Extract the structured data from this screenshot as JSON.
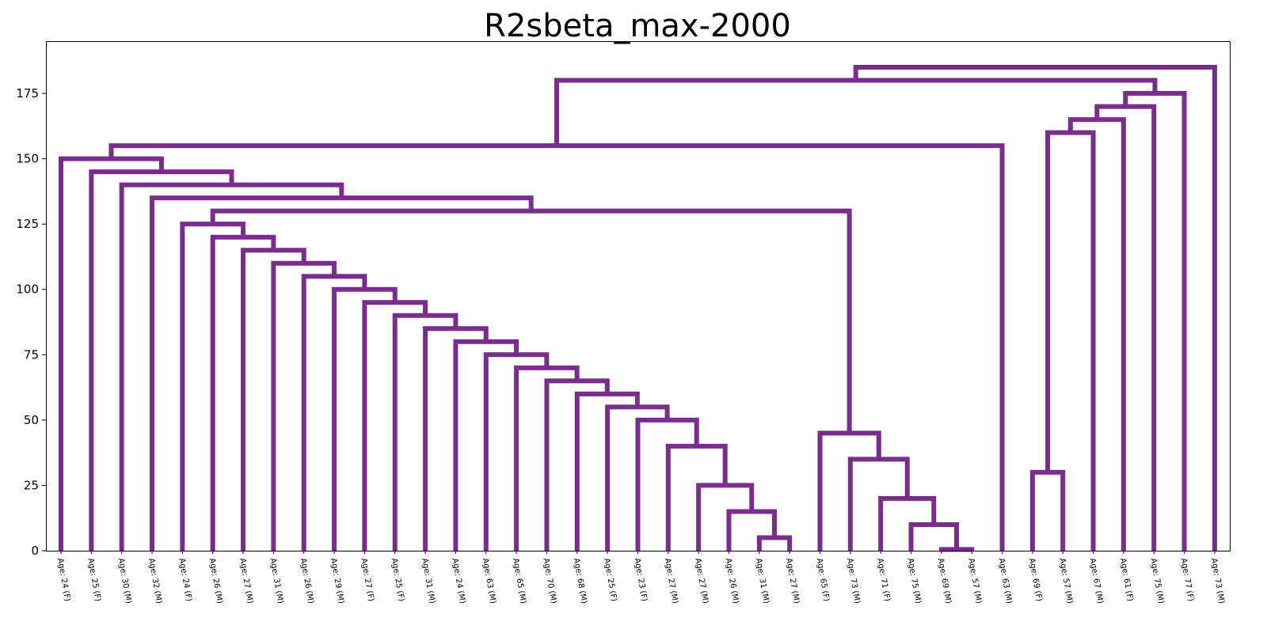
{
  "chart_data": {
    "type": "dendrogram",
    "title": "R2sbeta_max-2000",
    "xlabel": "",
    "ylabel": "",
    "ylim": [
      0,
      195
    ],
    "yticks": [
      0,
      25,
      50,
      75,
      100,
      125,
      150,
      175
    ],
    "grid": false,
    "link_color": "#7b2d8e",
    "leaves": [
      "Age: 24 (F)",
      "Age: 25 (F)",
      "Age: 30 (M)",
      "Age: 32 (M)",
      "Age: 24 (F)",
      "Age: 26 (M)",
      "Age: 27 (M)",
      "Age: 31 (M)",
      "Age: 26 (M)",
      "Age: 29 (M)",
      "Age: 27 (F)",
      "Age: 25 (F)",
      "Age: 31 (M)",
      "Age: 24 (M)",
      "Age: 63 (M)",
      "Age: 65 (M)",
      "Age: 70 (M)",
      "Age: 68 (M)",
      "Age: 25 (F)",
      "Age: 23 (F)",
      "Age: 27 (M)",
      "Age: 27 (M)",
      "Age: 26 (M)",
      "Age: 31 (M)",
      "Age: 27 (M)",
      "Age: 65 (F)",
      "Age: 73 (M)",
      "Age: 71 (F)",
      "Age: 75 (M)",
      "Age: 69 (M)",
      "Age: 57 (M)",
      "Age: 63 (M)",
      "Age: 69 (F)",
      "Age: 57 (M)",
      "Age: 67 (M)",
      "Age: 61 (F)",
      "Age: 75 (M)",
      "Age: 77 (F)",
      "Age: 73 (M)"
    ],
    "merges": [
      [
        29,
        30,
        0.5
      ],
      [
        23,
        24,
        5
      ],
      [
        28,
        "m0",
        10
      ],
      [
        22,
        "m1",
        15
      ],
      [
        27,
        "m2",
        20
      ],
      [
        21,
        "m3",
        25
      ],
      [
        32,
        33,
        30
      ],
      [
        26,
        "m4",
        35
      ],
      [
        20,
        "m5",
        40
      ],
      [
        25,
        "m7",
        45
      ],
      [
        19,
        "m8",
        50
      ],
      [
        18,
        "m10",
        55
      ],
      [
        17,
        "m11",
        60
      ],
      [
        16,
        "m12",
        65
      ],
      [
        15,
        "m13",
        70
      ],
      [
        14,
        "m14",
        75
      ],
      [
        13,
        "m15",
        80
      ],
      [
        12,
        "m16",
        85
      ],
      [
        11,
        "m17",
        90
      ],
      [
        10,
        "m18",
        95
      ],
      [
        9,
        "m19",
        100
      ],
      [
        8,
        "m20",
        105
      ],
      [
        7,
        "m21",
        110
      ],
      [
        6,
        "m22",
        115
      ],
      [
        5,
        "m23",
        120
      ],
      [
        4,
        "m24",
        125
      ],
      [
        "m25",
        "m9",
        130
      ],
      [
        3,
        "m26",
        135
      ],
      [
        2,
        "m27",
        140
      ],
      [
        1,
        "m28",
        145
      ],
      [
        0,
        "m29",
        150
      ],
      [
        "m30",
        31,
        155
      ],
      [
        "m6",
        34,
        160
      ],
      [
        "m32",
        35,
        165
      ],
      [
        "m33",
        36,
        170
      ],
      [
        "m34",
        37,
        175
      ],
      [
        "m31",
        "m35",
        180
      ],
      [
        "m36",
        38,
        185
      ]
    ]
  }
}
